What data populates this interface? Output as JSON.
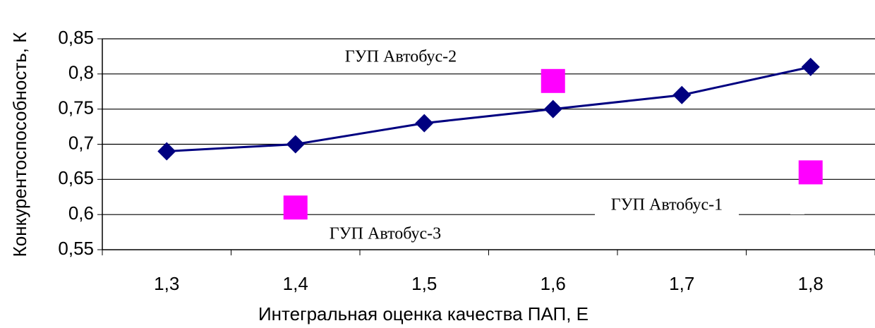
{
  "chart_data": {
    "type": "line",
    "x_label": "Интегральная оценка качества ПАП, Е",
    "y_label": "Конкурентоспособность, К",
    "categories": [
      "1,3",
      "1,4",
      "1,5",
      "1,6",
      "1,7",
      "1,8"
    ],
    "series": [
      {
        "color": "#000080",
        "marker": "diamond",
        "line": true,
        "values": [
          0.69,
          0.7,
          0.73,
          0.75,
          0.77,
          0.81
        ]
      },
      {
        "color": "#ff00ff",
        "marker": "square",
        "line": false,
        "values": [
          null,
          0.61,
          null,
          0.79,
          null,
          0.66
        ]
      }
    ],
    "annotations": [
      "ГУП Автобус-2",
      "ГУП Автобус-1",
      "ГУП Автобус-3"
    ],
    "ylim": [
      0.55,
      0.85
    ],
    "yticks": [
      {
        "value": 0.55,
        "label": "0,55"
      },
      {
        "value": 0.6,
        "label": "0,6"
      },
      {
        "value": 0.65,
        "label": "0,65"
      },
      {
        "value": 0.7,
        "label": "0,7"
      },
      {
        "value": 0.75,
        "label": "0,75"
      },
      {
        "value": 0.8,
        "label": "0,8"
      },
      {
        "value": 0.85,
        "label": "0,85"
      }
    ],
    "grid": true
  }
}
